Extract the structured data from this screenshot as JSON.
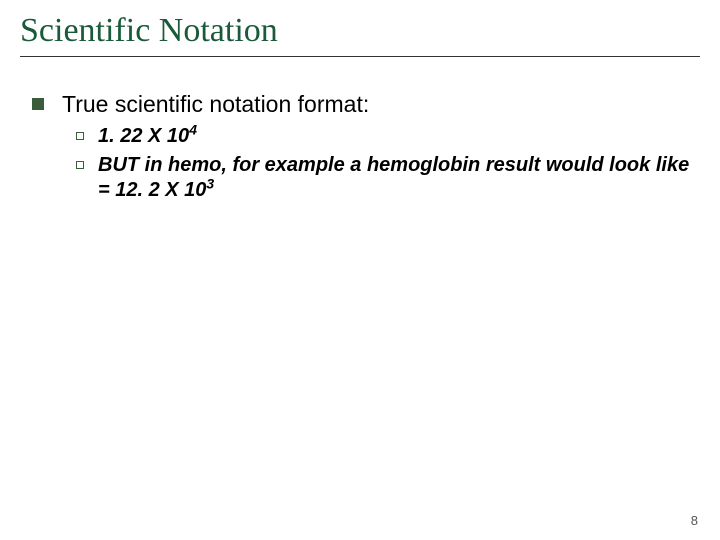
{
  "title": {
    "text": "Scientific Notation",
    "color": "#1a5a3a",
    "fontsize": 34
  },
  "body": {
    "color": "#000000",
    "level1": {
      "text": "True scientific notation format:",
      "fontsize": 23,
      "bullet_color": "#3b5c3b",
      "bullet_size": 12
    },
    "level2": {
      "fontsize": 20,
      "font_style": "bold italic",
      "bullet_color": "#3b5c3b",
      "bullet_size": 8,
      "items": [
        {
          "pre": "1. 22 X 10",
          "sup": "4",
          "post": ""
        },
        {
          "pre": "BUT in hemo, for example a hemoglobin result would look like = 12. 2 X 10",
          "sup": "3",
          "post": ""
        }
      ]
    }
  },
  "page_number": {
    "text": "8",
    "fontsize": 13,
    "color": "#555555"
  },
  "background_color": "#ffffff"
}
